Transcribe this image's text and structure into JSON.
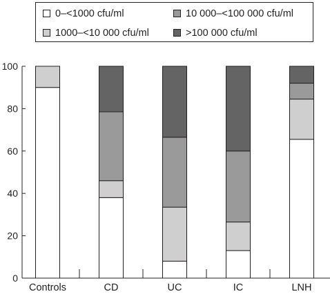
{
  "chart_data": {
    "type": "bar",
    "stacked": true,
    "categories": [
      "Controls",
      "CD",
      "UC",
      "IC",
      "LNH"
    ],
    "series": [
      {
        "name": "0–<1000 cfu/ml",
        "color": "#ffffff",
        "values": [
          90,
          38,
          8,
          13,
          65.5
        ]
      },
      {
        "name": "1000–<10 000 cfu/ml",
        "color": "#cfcfcf",
        "values": [
          10,
          8,
          25.5,
          13.5,
          19
        ]
      },
      {
        "name": "10 000–<100 000 cfu/ml",
        "color": "#9a9a9a",
        "values": [
          0,
          32.5,
          33,
          33.5,
          7.5
        ]
      },
      {
        "name": ">100 000 cfu/ml",
        "color": "#646464",
        "values": [
          0,
          21.5,
          33.5,
          40,
          8
        ]
      }
    ],
    "y_ticks": [
      "0",
      "20",
      "40",
      "60",
      "80",
      "100"
    ],
    "ylim": [
      0,
      100
    ],
    "legend_position": "top",
    "grid": false
  }
}
